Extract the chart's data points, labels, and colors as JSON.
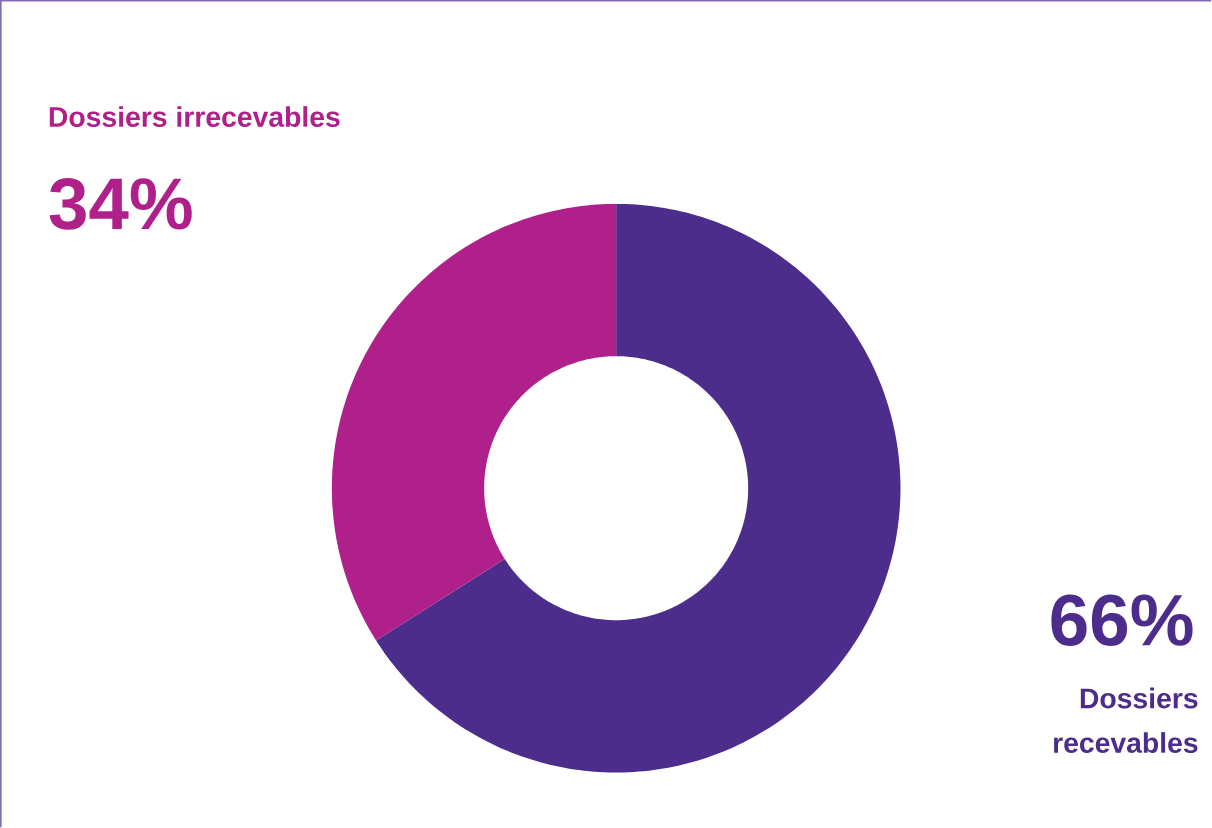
{
  "chart_data": {
    "type": "donut",
    "categories": [
      "Dossiers recevables",
      "Dossiers irrecevables"
    ],
    "values": [
      66,
      34
    ],
    "colors": [
      "#4d2d8c",
      "#b0208a"
    ],
    "value_labels": [
      "66%",
      "34%"
    ]
  }
}
